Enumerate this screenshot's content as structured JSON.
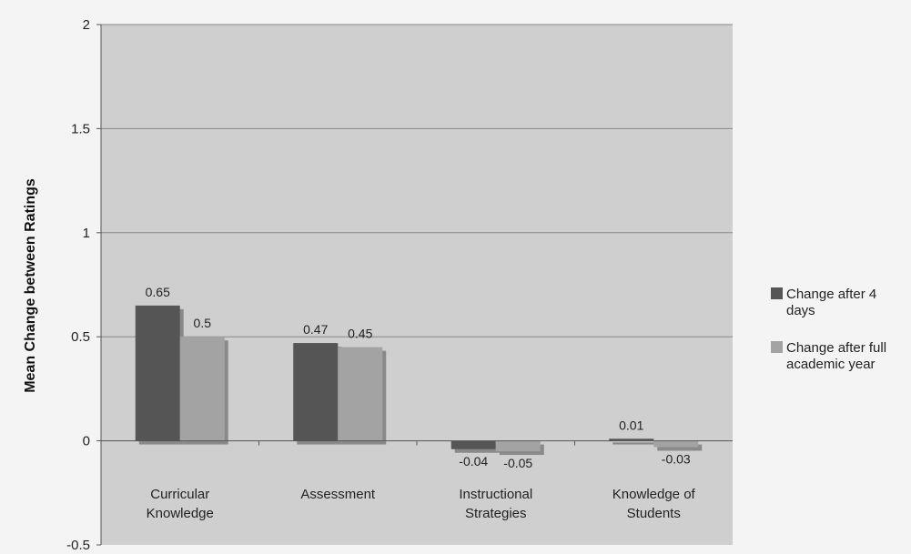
{
  "chart_data": {
    "type": "bar",
    "ylabel": "Mean Change between Ratings",
    "xlabel": "",
    "ylim": [
      -0.5,
      2
    ],
    "yticks": [
      "-0.5",
      "0",
      "0.5",
      "1",
      "1.5",
      "2"
    ],
    "grid": true,
    "legend_position": "right",
    "categories": [
      [
        "Curricular",
        "Knowledge"
      ],
      [
        "Assessment"
      ],
      [
        "Instructional",
        "Strategies"
      ],
      [
        "Knowledge of",
        "Students"
      ]
    ],
    "series": [
      {
        "name": [
          "Change after 4",
          "days"
        ],
        "values": [
          0.65,
          0.47,
          -0.04,
          0.01
        ],
        "labels": [
          "0.65",
          "0.47",
          "-0.04",
          "0.01"
        ],
        "color": "#555555"
      },
      {
        "name": [
          "Change after full",
          "academic year"
        ],
        "values": [
          0.5,
          0.45,
          -0.05,
          -0.03
        ],
        "labels": [
          "0.5",
          "0.45",
          "-0.05",
          "-0.03"
        ],
        "color": "#a3a3a3"
      }
    ],
    "colors": {
      "plot_background": "#cfcfcf",
      "gridline": "#888888",
      "bar_shadow": "#8a8a8a"
    }
  }
}
